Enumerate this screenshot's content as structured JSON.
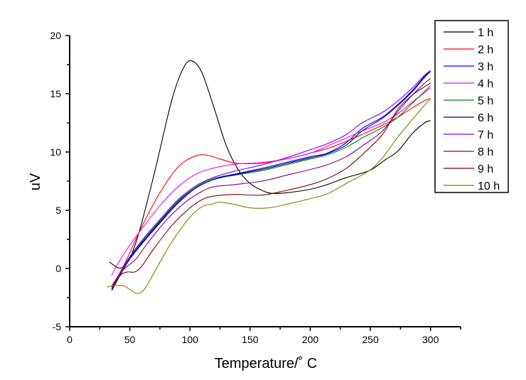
{
  "chart_data": {
    "type": "line",
    "title": "",
    "xlabel": "Temperature/˚ C",
    "ylabel": "uV",
    "xlim": [
      0,
      325
    ],
    "ylim": [
      -5,
      20
    ],
    "x_ticks": [
      0,
      50,
      100,
      150,
      200,
      250,
      300
    ],
    "x_tick_labels": [
      "0",
      "50",
      "100",
      "150",
      "200",
      "250",
      "300"
    ],
    "y_ticks": [
      -5,
      0,
      5,
      10,
      15,
      20
    ],
    "y_tick_labels": [
      "-5",
      "0",
      "5",
      "10",
      "15",
      "20"
    ],
    "grid": false,
    "legend_position": "top-right",
    "series": [
      {
        "name": "1 h",
        "color": "#000000",
        "points": [
          [
            33,
            0.55
          ],
          [
            44,
            0.1
          ],
          [
            55,
            2.2
          ],
          [
            70,
            8.0
          ],
          [
            85,
            14.5
          ],
          [
            95,
            17.3
          ],
          [
            102,
            17.8
          ],
          [
            110,
            16.8
          ],
          [
            120,
            13.8
          ],
          [
            130,
            10.6
          ],
          [
            140,
            8.5
          ],
          [
            150,
            7.3
          ],
          [
            160,
            6.7
          ],
          [
            168,
            6.45
          ],
          [
            180,
            6.5
          ],
          [
            200,
            6.8
          ],
          [
            214,
            7.2
          ],
          [
            230,
            7.8
          ],
          [
            249,
            8.4
          ],
          [
            262,
            9.3
          ],
          [
            273,
            10.1
          ],
          [
            285,
            11.6
          ],
          [
            295,
            12.5
          ],
          [
            300,
            12.7
          ]
        ]
      },
      {
        "name": "2 h",
        "color": "#ff0000",
        "points": [
          [
            35,
            -1.6
          ],
          [
            40,
            -0.7
          ],
          [
            48,
            0.9
          ],
          [
            60,
            3.6
          ],
          [
            75,
            6.5
          ],
          [
            90,
            8.7
          ],
          [
            103,
            9.6
          ],
          [
            113,
            9.75
          ],
          [
            125,
            9.4
          ],
          [
            137,
            9.05
          ],
          [
            147,
            9.0
          ],
          [
            160,
            9.05
          ],
          [
            180,
            9.4
          ],
          [
            200,
            9.9
          ],
          [
            220,
            10.5
          ],
          [
            243,
            11.5
          ],
          [
            260,
            12.3
          ],
          [
            273,
            13.0
          ],
          [
            285,
            13.8
          ],
          [
            295,
            14.4
          ],
          [
            300,
            14.6
          ]
        ]
      },
      {
        "name": "3 h",
        "color": "#0000ff",
        "points": [
          [
            35,
            -1.8
          ],
          [
            48,
            0.6
          ],
          [
            60,
            2.2
          ],
          [
            75,
            4.0
          ],
          [
            90,
            5.7
          ],
          [
            105,
            7.0
          ],
          [
            119,
            7.7
          ],
          [
            137,
            8.1
          ],
          [
            160,
            8.6
          ],
          [
            180,
            9.1
          ],
          [
            200,
            9.6
          ],
          [
            214,
            9.9
          ],
          [
            230,
            10.8
          ],
          [
            243,
            12.0
          ],
          [
            260,
            13.0
          ],
          [
            273,
            14.1
          ],
          [
            285,
            15.3
          ],
          [
            295,
            16.5
          ],
          [
            300,
            17.0
          ]
        ]
      },
      {
        "name": "4 h",
        "color": "#ff00ff",
        "points": [
          [
            35,
            -0.6
          ],
          [
            40,
            0.4
          ],
          [
            48,
            1.7
          ],
          [
            60,
            3.4
          ],
          [
            75,
            5.4
          ],
          [
            90,
            7.0
          ],
          [
            105,
            8.1
          ],
          [
            119,
            8.6
          ],
          [
            137,
            8.95
          ],
          [
            160,
            9.1
          ],
          [
            180,
            9.4
          ],
          [
            200,
            9.9
          ],
          [
            214,
            10.5
          ],
          [
            230,
            11.2
          ],
          [
            243,
            11.8
          ],
          [
            260,
            12.5
          ],
          [
            273,
            13.3
          ],
          [
            285,
            14.3
          ],
          [
            295,
            15.1
          ],
          [
            300,
            15.5
          ]
        ]
      },
      {
        "name": "5 h",
        "color": "#008000",
        "points": [
          [
            35,
            -1.7
          ],
          [
            48,
            0.7
          ],
          [
            60,
            2.3
          ],
          [
            75,
            4.1
          ],
          [
            90,
            5.8
          ],
          [
            105,
            7.0
          ],
          [
            119,
            7.7
          ],
          [
            137,
            8.0
          ],
          [
            160,
            8.4
          ],
          [
            180,
            8.9
          ],
          [
            200,
            9.4
          ],
          [
            214,
            9.75
          ],
          [
            230,
            10.4
          ],
          [
            243,
            11.2
          ],
          [
            260,
            12.1
          ],
          [
            273,
            13.0
          ],
          [
            285,
            14.2
          ],
          [
            295,
            15.2
          ],
          [
            300,
            15.7
          ]
        ]
      },
      {
        "name": "6 h",
        "color": "#000080",
        "points": [
          [
            35,
            -1.9
          ],
          [
            48,
            0.5
          ],
          [
            60,
            2.1
          ],
          [
            75,
            3.9
          ],
          [
            90,
            5.6
          ],
          [
            105,
            6.9
          ],
          [
            119,
            7.6
          ],
          [
            137,
            8.05
          ],
          [
            160,
            8.5
          ],
          [
            180,
            9.0
          ],
          [
            200,
            9.5
          ],
          [
            214,
            9.85
          ],
          [
            230,
            10.6
          ],
          [
            243,
            11.8
          ],
          [
            260,
            12.9
          ],
          [
            273,
            14.0
          ],
          [
            285,
            15.2
          ],
          [
            295,
            16.4
          ],
          [
            300,
            16.9
          ]
        ]
      },
      {
        "name": "7 h",
        "color": "#8000ff",
        "points": [
          [
            35,
            -1.8
          ],
          [
            48,
            0.7
          ],
          [
            60,
            2.4
          ],
          [
            75,
            4.2
          ],
          [
            90,
            5.9
          ],
          [
            105,
            7.1
          ],
          [
            119,
            7.8
          ],
          [
            137,
            8.35
          ],
          [
            160,
            8.9
          ],
          [
            180,
            9.5
          ],
          [
            200,
            10.2
          ],
          [
            214,
            10.7
          ],
          [
            230,
            11.5
          ],
          [
            243,
            12.5
          ],
          [
            260,
            13.4
          ],
          [
            273,
            14.4
          ],
          [
            285,
            15.5
          ],
          [
            295,
            16.6
          ],
          [
            300,
            17.0
          ]
        ]
      },
      {
        "name": "8 h",
        "color": "#800080",
        "points": [
          [
            35,
            -1.5
          ],
          [
            42,
            -0.4
          ],
          [
            48,
            0.2
          ],
          [
            55,
            0.8
          ],
          [
            65,
            2.2
          ],
          [
            80,
            4.1
          ],
          [
            95,
            5.6
          ],
          [
            108,
            6.5
          ],
          [
            119,
            7.0
          ],
          [
            137,
            7.2
          ],
          [
            160,
            7.5
          ],
          [
            180,
            8.0
          ],
          [
            200,
            8.5
          ],
          [
            214,
            8.9
          ],
          [
            230,
            9.6
          ],
          [
            243,
            10.5
          ],
          [
            260,
            11.8
          ],
          [
            273,
            13.5
          ],
          [
            285,
            14.9
          ],
          [
            295,
            15.9
          ],
          [
            300,
            16.3
          ]
        ]
      },
      {
        "name": "9 h",
        "color": "#800000",
        "points": [
          [
            35,
            -1.7
          ],
          [
            42,
            -0.6
          ],
          [
            48,
            -0.3
          ],
          [
            54,
            -0.3
          ],
          [
            60,
            0.2
          ],
          [
            70,
            1.7
          ],
          [
            85,
            3.7
          ],
          [
            100,
            5.2
          ],
          [
            110,
            5.9
          ],
          [
            119,
            6.2
          ],
          [
            137,
            6.35
          ],
          [
            160,
            6.3
          ],
          [
            180,
            6.7
          ],
          [
            200,
            7.2
          ],
          [
            214,
            7.7
          ],
          [
            230,
            8.6
          ],
          [
            243,
            9.75
          ],
          [
            260,
            11.5
          ],
          [
            273,
            13.7
          ],
          [
            285,
            14.9
          ],
          [
            295,
            15.6
          ],
          [
            300,
            15.9
          ]
        ]
      },
      {
        "name": "10 h",
        "color": "#808000",
        "points": [
          [
            31,
            -1.6
          ],
          [
            38,
            -1.45
          ],
          [
            45,
            -1.5
          ],
          [
            50,
            -1.8
          ],
          [
            56,
            -2.15
          ],
          [
            62,
            -1.8
          ],
          [
            70,
            -0.4
          ],
          [
            85,
            2.3
          ],
          [
            100,
            4.4
          ],
          [
            110,
            5.3
          ],
          [
            119,
            5.55
          ],
          [
            125,
            5.7
          ],
          [
            137,
            5.5
          ],
          [
            150,
            5.2
          ],
          [
            165,
            5.2
          ],
          [
            180,
            5.5
          ],
          [
            200,
            6.0
          ],
          [
            214,
            6.4
          ],
          [
            230,
            7.3
          ],
          [
            249,
            8.4
          ],
          [
            260,
            9.5
          ],
          [
            273,
            11.3
          ],
          [
            285,
            12.8
          ],
          [
            295,
            14.0
          ],
          [
            300,
            14.6
          ]
        ]
      }
    ]
  }
}
